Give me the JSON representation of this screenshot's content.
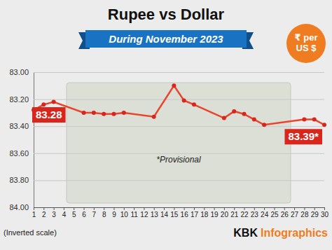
{
  "chart_data": {
    "type": "line",
    "title": "Rupee vs Dollar",
    "subtitle": "During November 2023",
    "unit_label": "₹ per US $",
    "notes": [
      "*Provisional",
      "(Inverted scale)"
    ],
    "source": [
      "KBK",
      "Infographics"
    ],
    "x": [
      1,
      2,
      3,
      6,
      7,
      8,
      9,
      10,
      13,
      15,
      16,
      17,
      20,
      21,
      22,
      23,
      24,
      28,
      29,
      30
    ],
    "values": [
      83.28,
      83.24,
      83.22,
      83.3,
      83.3,
      83.31,
      83.31,
      83.3,
      83.33,
      83.1,
      83.21,
      83.24,
      83.34,
      83.29,
      83.31,
      83.35,
      83.39,
      83.35,
      83.35,
      83.39
    ],
    "value_labels": [
      "83.28",
      null,
      null,
      null,
      null,
      null,
      null,
      null,
      null,
      null,
      null,
      null,
      null,
      null,
      null,
      null,
      null,
      null,
      null,
      "83.39*"
    ],
    "color": "#e8452c",
    "marker": "circle",
    "xlim": [
      1,
      30
    ],
    "xticks": [
      1,
      2,
      3,
      4,
      5,
      6,
      7,
      8,
      9,
      10,
      11,
      12,
      13,
      14,
      15,
      16,
      17,
      18,
      19,
      20,
      21,
      22,
      23,
      24,
      25,
      26,
      27,
      28,
      29,
      30
    ],
    "ylim": [
      84,
      83
    ],
    "yticks": [
      {
        "value": 83,
        "label": "83.00"
      },
      {
        "value": 83.2,
        "label": "83.20"
      },
      {
        "value": 83.4,
        "label": "83.40"
      },
      {
        "value": 83.6,
        "label": "83.60"
      },
      {
        "value": 83.8,
        "label": "83.80"
      },
      {
        "value": 84,
        "label": "84.00"
      }
    ],
    "grid": true
  }
}
